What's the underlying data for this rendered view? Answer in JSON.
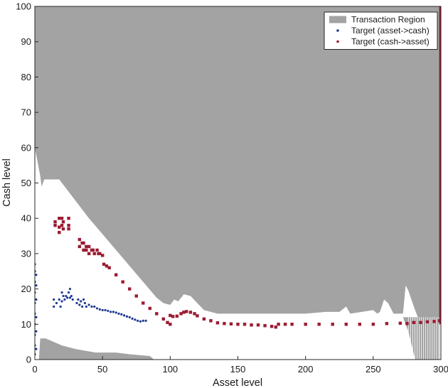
{
  "chart_data": {
    "type": "area",
    "title": "",
    "xlabel": "Asset level",
    "ylabel": "Cash level",
    "xlim": [
      0,
      300
    ],
    "ylim": [
      0,
      100
    ],
    "xticks": [
      0,
      50,
      100,
      150,
      200,
      250,
      300
    ],
    "yticks": [
      0,
      10,
      20,
      30,
      40,
      50,
      60,
      70,
      80,
      90,
      100
    ],
    "grid": false,
    "legend_position": "top-right",
    "colors": {
      "region": "#a3a3a3",
      "asset_to_cash": "#1f3a93",
      "cash_to_asset": "#9b1b30"
    },
    "legend": [
      {
        "label": "Transaction Region",
        "kind": "patch",
        "color_key": "region"
      },
      {
        "label": "Target (asset->cash)",
        "kind": "marker",
        "color_key": "asset_to_cash"
      },
      {
        "label": "Target (cash->asset)",
        "kind": "marker",
        "color_key": "cash_to_asset"
      }
    ],
    "series": [
      {
        "name": "Transaction Region",
        "kind": "upper_region",
        "boundary": [
          [
            0,
            60
          ],
          [
            2,
            56
          ],
          [
            4,
            52
          ],
          [
            5,
            49
          ],
          [
            7,
            51
          ],
          [
            10,
            51
          ],
          [
            14,
            51
          ],
          [
            18,
            51
          ],
          [
            22,
            49
          ],
          [
            28,
            46
          ],
          [
            40,
            40
          ],
          [
            60,
            31
          ],
          [
            80,
            22
          ],
          [
            90,
            17.5
          ],
          [
            95,
            16
          ],
          [
            100,
            15.5
          ],
          [
            103,
            17
          ],
          [
            106,
            16.5
          ],
          [
            110,
            18.5
          ],
          [
            115,
            18
          ],
          [
            120,
            16
          ],
          [
            125,
            14
          ],
          [
            135,
            13
          ],
          [
            170,
            13
          ],
          [
            200,
            13
          ],
          [
            215,
            13.5
          ],
          [
            225,
            13.5
          ],
          [
            230,
            15
          ],
          [
            233,
            13
          ],
          [
            250,
            14
          ],
          [
            253,
            13
          ],
          [
            255,
            13.5
          ],
          [
            258,
            17
          ],
          [
            261,
            16
          ],
          [
            265,
            13
          ],
          [
            272,
            13
          ],
          [
            274,
            21
          ],
          [
            276,
            19.5
          ],
          [
            280,
            15
          ],
          [
            283,
            12
          ],
          [
            300,
            12
          ]
        ]
      },
      {
        "name": "Transaction Region",
        "kind": "lower_region",
        "boundary": [
          [
            3,
            0
          ],
          [
            4,
            6
          ],
          [
            8,
            6
          ],
          [
            20,
            4
          ],
          [
            30,
            3
          ],
          [
            45,
            2
          ],
          [
            60,
            2
          ],
          [
            70,
            1.5
          ],
          [
            85,
            1
          ],
          [
            88,
            0
          ]
        ]
      },
      {
        "name": "Transaction Region",
        "kind": "right_lower_region",
        "boundary": [
          [
            272,
            12
          ],
          [
            276,
            8
          ],
          [
            281,
            0
          ],
          [
            299,
            0
          ],
          [
            299,
            12
          ]
        ]
      },
      {
        "name": "Target (asset->cash)",
        "points": [
          [
            0,
            1.5
          ],
          [
            0,
            4
          ],
          [
            0,
            7
          ],
          [
            0,
            10
          ],
          [
            0,
            13
          ],
          [
            0,
            16
          ],
          [
            0,
            19
          ],
          [
            0,
            22
          ],
          [
            0,
            25
          ],
          [
            0,
            27
          ],
          [
            1,
            3
          ],
          [
            1,
            8
          ],
          [
            1,
            12
          ],
          [
            1,
            17
          ],
          [
            1,
            21
          ],
          [
            1,
            24
          ],
          [
            14,
            15
          ],
          [
            14,
            17
          ],
          [
            16,
            16
          ],
          [
            18,
            17
          ],
          [
            19,
            15
          ],
          [
            20,
            16.5
          ],
          [
            20,
            19
          ],
          [
            21,
            18
          ],
          [
            22,
            17
          ],
          [
            23,
            18
          ],
          [
            24,
            17.5
          ],
          [
            25,
            19
          ],
          [
            26,
            17.5
          ],
          [
            26,
            20
          ],
          [
            27,
            18
          ],
          [
            28,
            17
          ],
          [
            31,
            16
          ],
          [
            32,
            17
          ],
          [
            33,
            15.5
          ],
          [
            34,
            16.5
          ],
          [
            35,
            15
          ],
          [
            36,
            17
          ],
          [
            37,
            16
          ],
          [
            38,
            15
          ],
          [
            40,
            15.5
          ],
          [
            42,
            15
          ],
          [
            44,
            15
          ],
          [
            46,
            14.5
          ],
          [
            48,
            14.2
          ],
          [
            50,
            14
          ],
          [
            52,
            14
          ],
          [
            54,
            13.8
          ],
          [
            56,
            13.5
          ],
          [
            58,
            13.5
          ],
          [
            60,
            13.3
          ],
          [
            62,
            13
          ],
          [
            64,
            12.8
          ],
          [
            66,
            12.5
          ],
          [
            68,
            12.2
          ],
          [
            70,
            12
          ],
          [
            72,
            11.6
          ],
          [
            74,
            11.3
          ],
          [
            76,
            11
          ],
          [
            78,
            10.8
          ],
          [
            80,
            11
          ],
          [
            82,
            11
          ]
        ]
      },
      {
        "name": "Target (cash->asset)",
        "points": [
          [
            15,
            39
          ],
          [
            15,
            38
          ],
          [
            18,
            40
          ],
          [
            18,
            37.5
          ],
          [
            18,
            36
          ],
          [
            20,
            40
          ],
          [
            20,
            38
          ],
          [
            21,
            39
          ],
          [
            21,
            37
          ],
          [
            25,
            40
          ],
          [
            25,
            38
          ],
          [
            25,
            37
          ],
          [
            33,
            34
          ],
          [
            33,
            32
          ],
          [
            35,
            33
          ],
          [
            36,
            33
          ],
          [
            36,
            31
          ],
          [
            38,
            32
          ],
          [
            38,
            31
          ],
          [
            40,
            32
          ],
          [
            40,
            30
          ],
          [
            42,
            31
          ],
          [
            43,
            31
          ],
          [
            44,
            30
          ],
          [
            46,
            31
          ],
          [
            47,
            30
          ],
          [
            48,
            30
          ],
          [
            50,
            29.5
          ],
          [
            51,
            27
          ],
          [
            53,
            26.5
          ],
          [
            55,
            26
          ],
          [
            60,
            24
          ],
          [
            65,
            22
          ],
          [
            70,
            20
          ],
          [
            75,
            18
          ],
          [
            80,
            16
          ],
          [
            85,
            14.5
          ],
          [
            90,
            13
          ],
          [
            95,
            11.5
          ],
          [
            98,
            10.5
          ],
          [
            100,
            10
          ],
          [
            100,
            12.5
          ],
          [
            102,
            12.2
          ],
          [
            105,
            12.3
          ],
          [
            108,
            13
          ],
          [
            110,
            13.4
          ],
          [
            112,
            13.6
          ],
          [
            115,
            13.4
          ],
          [
            118,
            13
          ],
          [
            120,
            12.4
          ],
          [
            125,
            11.5
          ],
          [
            130,
            11
          ],
          [
            135,
            10.4
          ],
          [
            140,
            10.2
          ],
          [
            145,
            10.1
          ],
          [
            150,
            10
          ],
          [
            155,
            10
          ],
          [
            160,
            9.8
          ],
          [
            165,
            9.8
          ],
          [
            170,
            9.6
          ],
          [
            175,
            9.4
          ],
          [
            178,
            9.2
          ],
          [
            180,
            10
          ],
          [
            185,
            10
          ],
          [
            190,
            10
          ],
          [
            200,
            10
          ],
          [
            210,
            10
          ],
          [
            220,
            10
          ],
          [
            230,
            10
          ],
          [
            240,
            10
          ],
          [
            250,
            10
          ],
          [
            260,
            10.2
          ],
          [
            270,
            10.3
          ],
          [
            275,
            10.2
          ],
          [
            280,
            10.5
          ],
          [
            285,
            10.5
          ],
          [
            290,
            10.7
          ],
          [
            295,
            10.8
          ],
          [
            299,
            11
          ]
        ]
      },
      {
        "name": "Target (cash->asset)",
        "kind": "vertical_band",
        "x": 299.5,
        "y_range": [
          10,
          100
        ]
      }
    ]
  }
}
